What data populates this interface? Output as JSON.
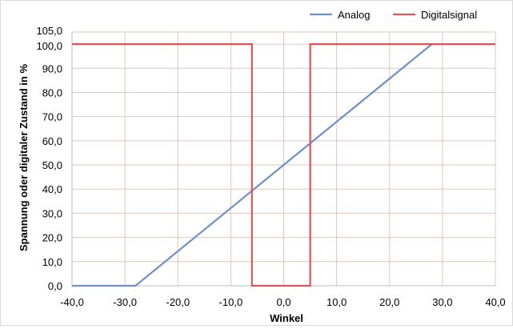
{
  "chart_data": {
    "type": "line",
    "xlabel": "Winkel",
    "ylabel": "Spannung oder digitaler Zustand in %",
    "xlim": [
      -40,
      40
    ],
    "ylim": [
      0,
      105
    ],
    "xticks": [
      -40,
      -30,
      -20,
      -10,
      0,
      10,
      20,
      30,
      40
    ],
    "xtick_labels": [
      "-40,0",
      "-30,0",
      "-20,0",
      "-10,0",
      "0,0",
      "10,0",
      "20,0",
      "30,0",
      "40,0"
    ],
    "yticks": [
      0,
      10,
      20,
      30,
      40,
      50,
      60,
      70,
      80,
      90,
      100,
      105
    ],
    "ytick_labels": [
      "0,0",
      "10,0",
      "20,0",
      "30,0",
      "40,0",
      "50,0",
      "60,0",
      "70,0",
      "80,0",
      "90,0",
      "100,0",
      "105,0"
    ],
    "grid": true,
    "legend_position": "top-right",
    "series": [
      {
        "name": "Analog",
        "color": "#6f8fc8",
        "points": [
          [
            -40,
            0
          ],
          [
            -28,
            0
          ],
          [
            28,
            100
          ],
          [
            40,
            100
          ]
        ]
      },
      {
        "name": "Digitalsignal",
        "color": "#d9565b",
        "points": [
          [
            -40,
            100
          ],
          [
            -6,
            100
          ],
          [
            -6,
            0
          ],
          [
            5,
            0
          ],
          [
            5,
            100
          ],
          [
            40,
            100
          ]
        ]
      }
    ]
  }
}
